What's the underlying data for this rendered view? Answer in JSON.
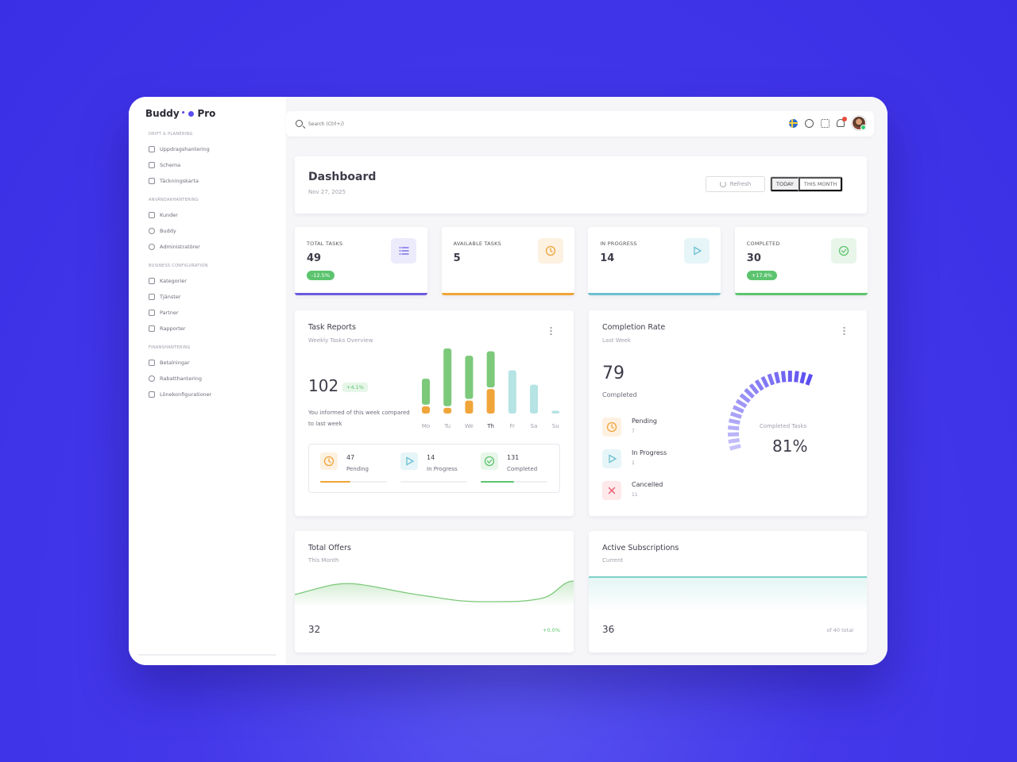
{
  "brand": {
    "name": "Buddy",
    "sep": "•",
    "suffix": "Pro"
  },
  "sidebar": {
    "sections": [
      {
        "title": "DRIFT & PLANERING",
        "items": [
          {
            "label": "Uppdragshantering",
            "icon": "clipboard-icon"
          },
          {
            "label": "Schema",
            "icon": "calendar-icon"
          },
          {
            "label": "Täckningskarta",
            "icon": "map-icon"
          }
        ]
      },
      {
        "title": "ANVÄNDARHANTERING",
        "items": [
          {
            "label": "Kunder",
            "icon": "users-icon"
          },
          {
            "label": "Buddy",
            "icon": "user-circle-icon"
          },
          {
            "label": "Administratörer",
            "icon": "settings-icon"
          }
        ]
      },
      {
        "title": "BUSINESS CONFIGURATION",
        "items": [
          {
            "label": "Kategorier",
            "icon": "tag-icon"
          },
          {
            "label": "Tjänster",
            "icon": "layers-icon"
          },
          {
            "label": "Partner",
            "icon": "building-icon"
          },
          {
            "label": "Rapporter",
            "icon": "bar-chart-icon"
          }
        ]
      },
      {
        "title": "FINANSHANTERING",
        "items": [
          {
            "label": "Betalningar",
            "icon": "receipt-icon"
          },
          {
            "label": "Rabatthantering",
            "icon": "discount-icon"
          },
          {
            "label": "Lönekonfigurationer",
            "icon": "document-icon"
          }
        ]
      }
    ]
  },
  "search": {
    "placeholder": "Search (Ctrl+/)"
  },
  "header": {
    "title": "Dashboard",
    "date": "Nov 27, 2025",
    "refresh_label": "Refresh",
    "today_label": "TODAY",
    "month_label": "THIS MONTH"
  },
  "stats": [
    {
      "label": "TOTAL TASKS",
      "value": "49",
      "badge": "-12.5%",
      "color": "#6a5ae0",
      "icon_bg": "#ecebfc"
    },
    {
      "label": "AVAILABLE TASKS",
      "value": "5",
      "badge": "",
      "color": "#f0a53a",
      "icon_bg": "#fdf1e2"
    },
    {
      "label": "IN PROGRESS",
      "value": "14",
      "badge": "",
      "color": "#6cbfd0",
      "icon_bg": "#e6f5f8"
    },
    {
      "label": "COMPLETED",
      "value": "30",
      "badge": "+17.8%",
      "color": "#5cc46e",
      "icon_bg": "#e8f6ea"
    }
  ],
  "task_reports": {
    "title": "Task Reports",
    "subtitle": "Weekly Tasks Overview",
    "total": "102",
    "change": "+4.1%",
    "note": "You informed of this week compared to last week",
    "summary": [
      {
        "value": "47",
        "label": "Pending",
        "fill": 0.45,
        "color": "#f0a53a",
        "icon_bg": "#fdf1e2"
      },
      {
        "value": "14",
        "label": "In Progress",
        "fill": 0.0,
        "color": "#6cbfd0",
        "icon_bg": "#e6f5f8"
      },
      {
        "value": "131",
        "label": "Completed",
        "fill": 0.5,
        "color": "#5cc46e",
        "icon_bg": "#e8f6ea"
      }
    ]
  },
  "chart_data": {
    "type": "bar",
    "categories": [
      "Mo",
      "Tu",
      "We",
      "Th",
      "Fr",
      "Sa",
      "Su"
    ],
    "series": [
      {
        "values": [
          5,
          4,
          9,
          17,
          0,
          0,
          0
        ],
        "color": "#f0a53a"
      },
      {
        "values": [
          18,
          40,
          30,
          25,
          30,
          20,
          2
        ],
        "color": "#7cc97a"
      }
    ],
    "future_color": "#b6e3e3",
    "highlight": "Th",
    "ylim": [
      0,
      44
    ]
  },
  "completion": {
    "title": "Completion Rate",
    "subtitle": "Last Week",
    "value": "79",
    "value_label": "Completed",
    "statuses": [
      {
        "name": "Pending",
        "count": "7",
        "color": "#f0a53a",
        "bg": "#fdf1e2",
        "icon": "clock-icon"
      },
      {
        "name": "In Progress",
        "count": "1",
        "color": "#6cbfd0",
        "bg": "#e6f5f8",
        "icon": "play-icon"
      },
      {
        "name": "Cancelled",
        "count": "11",
        "color": "#e8566b",
        "bg": "#fde8ea",
        "icon": "x-icon"
      }
    ],
    "gauge_title": "Completed Tasks",
    "gauge_value": "81%",
    "gauge_fraction": 0.81
  },
  "offers": {
    "title": "Total Offers",
    "subtitle": "This Month",
    "value": "32",
    "change": "+0.0%"
  },
  "subscriptions": {
    "title": "Active Subscriptions",
    "subtitle": "Current",
    "value": "36",
    "total": "of 40 total"
  }
}
